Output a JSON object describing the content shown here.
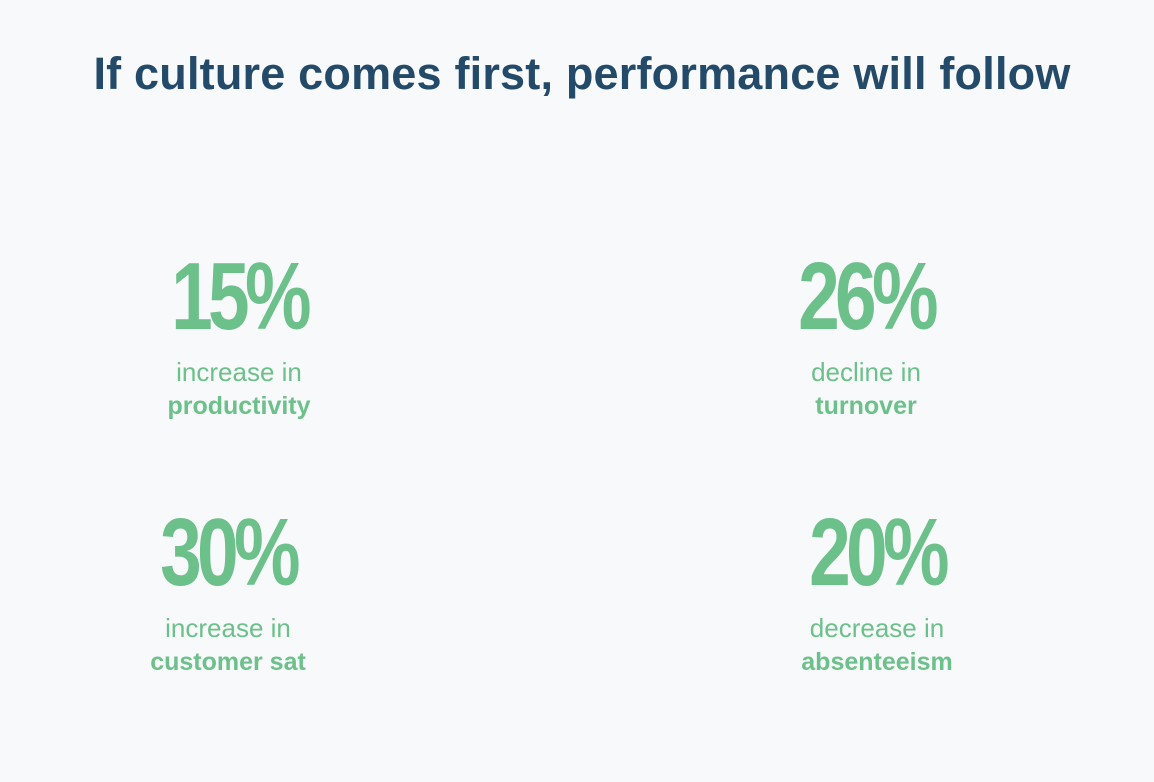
{
  "title": "If culture comes first, performance will follow",
  "colors": {
    "background": "#f8f9fb",
    "title": "#234a68",
    "accent": "#6cc08a"
  },
  "stats": [
    {
      "value": "15%",
      "verb": "increase in",
      "noun": "productivity"
    },
    {
      "value": "26%",
      "verb": "decline in",
      "noun": "turnover"
    },
    {
      "value": "30%",
      "verb": "increase in",
      "noun": "customer sat"
    },
    {
      "value": "20%",
      "verb": "decrease in",
      "noun": "absenteeism"
    }
  ]
}
